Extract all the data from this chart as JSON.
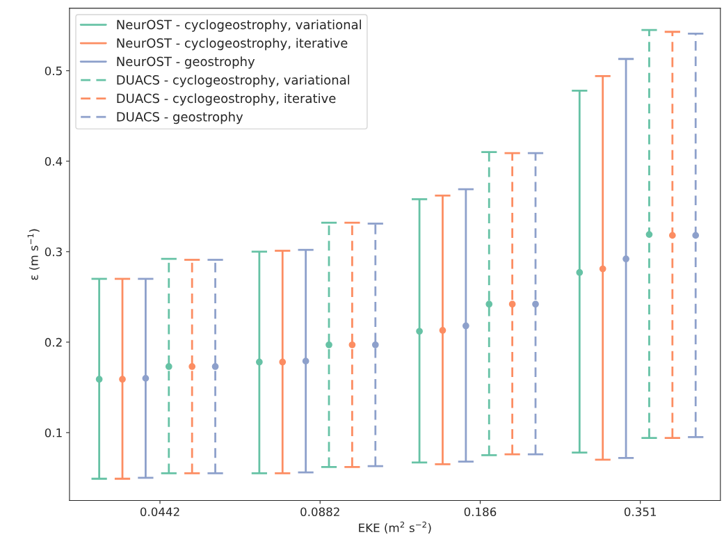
{
  "chart_data": {
    "type": "scatter",
    "xlabel": "EKE (m$^{2}$ s$^{−2}$)",
    "ylabel": "ε (m s$^{−1}$)",
    "categories": [
      "0.0442",
      "0.0882",
      "0.186",
      "0.351"
    ],
    "ylim": [
      0.025,
      0.569
    ],
    "yticks": [
      0.1,
      0.2,
      0.3,
      0.4,
      0.5
    ],
    "marker": "circle",
    "legend": "top left",
    "grid": false,
    "series": [
      {
        "name": "NeurOST - cyclogeostrophy, variational",
        "color": "#66c2a5",
        "line_style": "solid",
        "values": [
          0.159,
          0.178,
          0.212,
          0.277
        ],
        "errors": [
          [
            0.049,
            0.27
          ],
          [
            0.055,
            0.3
          ],
          [
            0.067,
            0.358
          ],
          [
            0.078,
            0.478
          ]
        ]
      },
      {
        "name": "NeurOST - cyclogeostrophy, iterative",
        "color": "#fc8d62",
        "line_style": "solid",
        "values": [
          0.159,
          0.178,
          0.213,
          0.281
        ],
        "errors": [
          [
            0.049,
            0.27
          ],
          [
            0.055,
            0.301
          ],
          [
            0.065,
            0.362
          ],
          [
            0.07,
            0.494
          ]
        ]
      },
      {
        "name": "NeurOST - geostrophy",
        "color": "#8da0cb",
        "line_style": "solid",
        "values": [
          0.16,
          0.179,
          0.218,
          0.292
        ],
        "errors": [
          [
            0.05,
            0.27
          ],
          [
            0.056,
            0.302
          ],
          [
            0.068,
            0.369
          ],
          [
            0.072,
            0.513
          ]
        ]
      },
      {
        "name": "DUACS - cyclogeostrophy, variational",
        "color": "#66c2a5",
        "line_style": "dashed",
        "values": [
          0.173,
          0.197,
          0.242,
          0.319
        ],
        "errors": [
          [
            0.055,
            0.292
          ],
          [
            0.062,
            0.332
          ],
          [
            0.075,
            0.41
          ],
          [
            0.094,
            0.545
          ]
        ]
      },
      {
        "name": "DUACS - cyclogeostrophy, iterative",
        "color": "#fc8d62",
        "line_style": "dashed",
        "values": [
          0.173,
          0.197,
          0.242,
          0.318
        ],
        "errors": [
          [
            0.055,
            0.291
          ],
          [
            0.062,
            0.332
          ],
          [
            0.076,
            0.409
          ],
          [
            0.094,
            0.543
          ]
        ]
      },
      {
        "name": "DUACS - geostrophy",
        "color": "#8da0cb",
        "line_style": "dashed",
        "values": [
          0.173,
          0.197,
          0.242,
          0.318
        ],
        "errors": [
          [
            0.055,
            0.291
          ],
          [
            0.063,
            0.331
          ],
          [
            0.076,
            0.409
          ],
          [
            0.095,
            0.541
          ]
        ]
      }
    ]
  }
}
